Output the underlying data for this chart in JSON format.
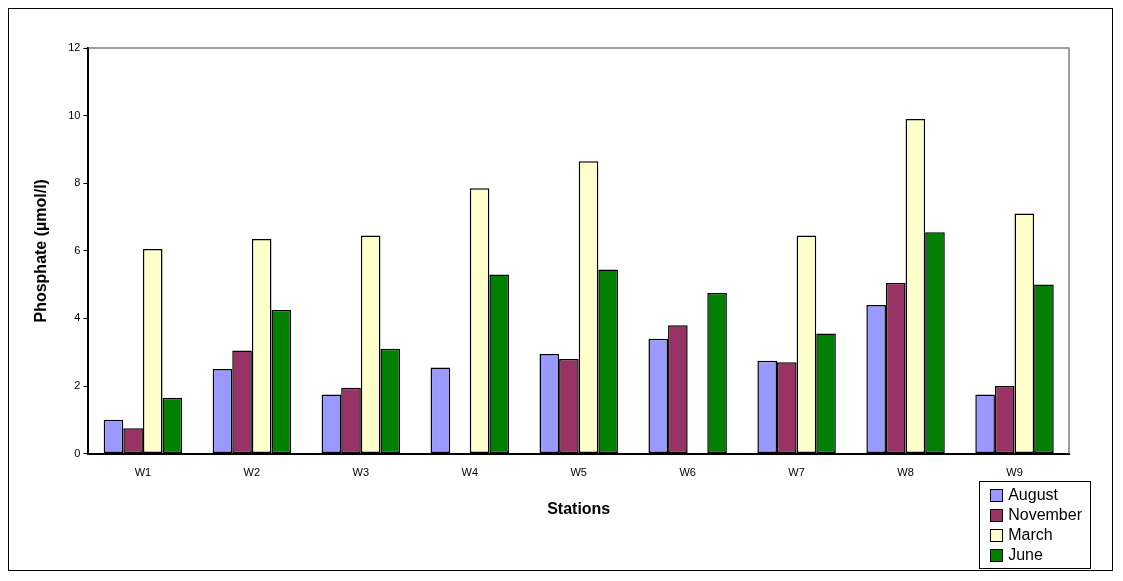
{
  "chart_data": {
    "type": "bar",
    "xlabel": "Stations",
    "ylabel": "Phosphate (µmol/l)",
    "categories": [
      "W1",
      "W2",
      "W3",
      "W4",
      "W5",
      "W6",
      "W7",
      "W8",
      "W9"
    ],
    "series": [
      {
        "name": "August",
        "color": "#9999ff",
        "values": [
          1.0,
          2.5,
          1.75,
          2.55,
          2.95,
          3.4,
          2.75,
          4.4,
          1.75
        ]
      },
      {
        "name": "November",
        "color": "#993366",
        "values": [
          0.75,
          3.05,
          1.95,
          null,
          2.8,
          3.8,
          2.7,
          5.05,
          2.0
        ]
      },
      {
        "name": "March",
        "color": "#ffffcc",
        "values": [
          6.05,
          6.35,
          6.45,
          7.85,
          8.65,
          null,
          6.45,
          9.9,
          7.1
        ]
      },
      {
        "name": "June",
        "color": "#008000",
        "values": [
          1.65,
          4.25,
          3.1,
          5.3,
          5.45,
          4.75,
          3.55,
          6.55,
          5.0
        ]
      }
    ],
    "ylim": [
      0,
      12
    ],
    "yticks": [
      0,
      2,
      4,
      6,
      8,
      10,
      12
    ],
    "grid": false,
    "legend": "bottom right"
  }
}
